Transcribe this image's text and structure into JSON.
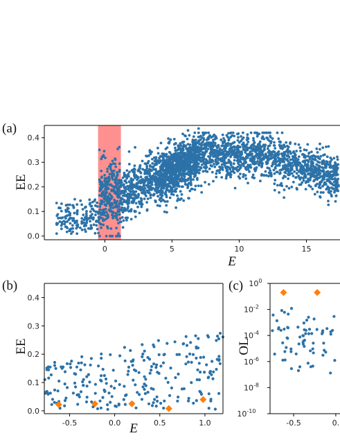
{
  "chart_data": [
    {
      "panel_label": "(a)",
      "type": "scatter",
      "xlabel": "E",
      "ylabel": "EE",
      "xlim": [
        -4.5,
        17.5
      ],
      "ylim": [
        -0.015,
        0.45
      ],
      "x_ticks": [
        0,
        5,
        10,
        15
      ],
      "x_tick_labels": [
        "0",
        "5",
        "10",
        "15"
      ],
      "y_ticks": [
        0.0,
        0.1,
        0.2,
        0.3,
        0.4
      ],
      "y_tick_labels": [
        "0.0",
        "0.1",
        "0.2",
        "0.3",
        "0.4"
      ],
      "highlight_band": {
        "x_range": [
          -0.5,
          1.2
        ],
        "color": "#ff6b6b"
      },
      "series": [
        {
          "marker": "circle",
          "color": "#2c72a8",
          "count_estimate": 4000,
          "trend": "dense cloud rising from ~0.05 near E=-3 to ~0.33 around E=7-12, then dropping to ~0.25 at E=17"
        }
      ]
    },
    {
      "panel_label": "(b)",
      "type": "scatter",
      "xlabel": "E",
      "ylabel": "EE",
      "xlim": [
        -0.78,
        1.2
      ],
      "ylim": [
        -0.01,
        0.45
      ],
      "x_ticks": [
        -0.5,
        0.0,
        0.5,
        1.0
      ],
      "x_tick_labels": [
        "-0.5",
        "0.0",
        "0.5",
        "1.0"
      ],
      "y_ticks": [
        0.0,
        0.1,
        0.2,
        0.3,
        0.4
      ],
      "y_tick_labels": [
        "0.0",
        "0.1",
        "0.2",
        "0.3",
        "0.4"
      ],
      "series": [
        {
          "marker": "circle",
          "color": "#2c72a8",
          "count_estimate": 250,
          "trend": "scattered points, y spread 0.0-0.3 with upper envelope rising to the right"
        },
        {
          "marker": "diamond",
          "color": "#ff7f0e",
          "points": [
            [
              -0.62,
              0.022
            ],
            [
              -0.22,
              0.025
            ],
            [
              0.19,
              0.025
            ],
            [
              0.6,
              0.008
            ],
            [
              0.98,
              0.04
            ]
          ]
        }
      ]
    },
    {
      "panel_label": "(c)",
      "type": "scatter",
      "xlabel": "",
      "ylabel": "OL",
      "yscale": "log",
      "xlim": [
        -0.78,
        0.05
      ],
      "ylim": [
        1e-10,
        1
      ],
      "x_ticks": [
        -0.5,
        0.0
      ],
      "x_tick_labels": [
        "-0.5",
        "0."
      ],
      "y_ticks": [
        1,
        0.01,
        0.0001,
        1e-06,
        1e-08,
        1e-10
      ],
      "y_tick_bases": [
        "10",
        "10",
        "10",
        "10",
        "10",
        "10"
      ],
      "y_tick_exponents": [
        "0",
        "-2",
        "-4",
        "-6",
        "-8",
        "-10"
      ],
      "series": [
        {
          "marker": "circle",
          "color": "#2c72a8",
          "count_estimate": 70,
          "trend": "points spread between 1e-7 and 1e-2"
        },
        {
          "marker": "diamond",
          "color": "#ff7f0e",
          "points": [
            [
              -0.62,
              0.2
            ],
            [
              -0.22,
              0.2
            ]
          ]
        }
      ]
    }
  ]
}
